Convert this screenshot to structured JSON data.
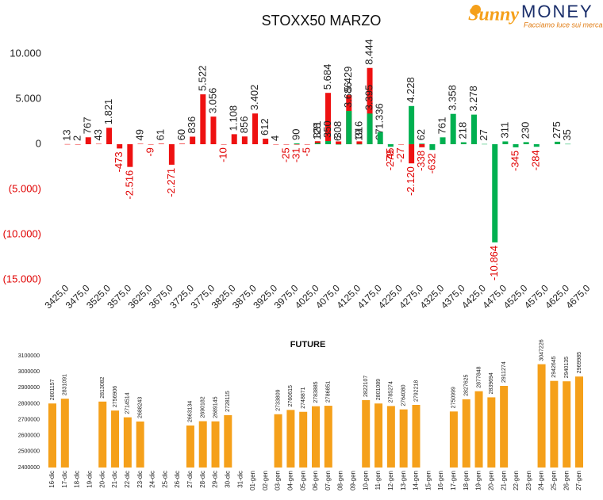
{
  "header": {
    "brand": "Sunny",
    "brand2": "MONEY",
    "tagline": "Facciamo luce sui mercati"
  },
  "chart_data": [
    {
      "type": "bar",
      "title": "STOXX50 MARZO",
      "categories": [
        "3425,0",
        null,
        "3475,0",
        null,
        "3525,0",
        null,
        "3575,0",
        null,
        "3625,0",
        null,
        "3675,0",
        null,
        "3725,0",
        null,
        "3775,0",
        null,
        "3825,0",
        null,
        "3875,0",
        null,
        "3925,0",
        null,
        "3975,0",
        null,
        "4025,0",
        null,
        "4075,0",
        null,
        "4125,0",
        null,
        "4175,0",
        null,
        "4225,0",
        null,
        "4275,0",
        null,
        "4325,0",
        null,
        "4375,0",
        null,
        "4425,0",
        null,
        "4475,0",
        null,
        "4525,0",
        null,
        "4575,0",
        null,
        "4625,0",
        null,
        "4675,0"
      ],
      "series": [
        {
          "color": "#ee1111",
          "values": [
            13,
            2,
            767,
            43,
            1821,
            -473,
            -2516,
            49,
            -9,
            61,
            -2271,
            60,
            836,
            5522,
            3056,
            -10,
            1108,
            856,
            3402,
            612,
            4,
            -25,
            -31,
            -5,
            331,
            5684,
            308,
            5429,
            316,
            8444,
            97,
            -45,
            -27,
            -2120,
            -338,
            null,
            null,
            null,
            null,
            null,
            null,
            null,
            null,
            null,
            null,
            null,
            null,
            null,
            null,
            null,
            null
          ],
          "value_labels": [
            "13",
            "2",
            "767",
            "43",
            "1.821",
            "-473",
            "-2.516",
            "49",
            "-9",
            "61",
            "-2.271",
            "60",
            "836",
            "5.522",
            "3.056",
            "-10",
            "1.108",
            "856",
            "3.402",
            "612",
            "4",
            "-25",
            "-31",
            "-5",
            "331",
            "5.684",
            "308",
            "5.429",
            "316",
            "8.444",
            "97",
            "-45",
            "-27",
            "-2.120",
            "-338",
            null,
            null,
            null,
            null,
            null,
            null,
            null,
            null,
            null,
            null,
            null,
            null,
            null,
            null,
            null,
            null
          ]
        },
        {
          "color": "#00b050",
          "values": [
            null,
            null,
            null,
            null,
            null,
            null,
            null,
            null,
            null,
            null,
            null,
            null,
            null,
            null,
            null,
            null,
            null,
            null,
            null,
            null,
            null,
            null,
            90,
            null,
            128,
            350,
            6,
            3686,
            19,
            3395,
            1336,
            -279,
            null,
            4228,
            62,
            -632,
            761,
            3358,
            218,
            3278,
            27,
            -10864,
            311,
            -345,
            230,
            -284,
            null,
            275,
            35,
            null,
            null
          ],
          "value_labels": [
            null,
            null,
            null,
            null,
            null,
            null,
            null,
            null,
            null,
            null,
            null,
            null,
            null,
            null,
            null,
            null,
            null,
            null,
            null,
            null,
            null,
            null,
            "90",
            null,
            "128",
            "350",
            "6",
            "3.686",
            "19",
            "3.395",
            "1.336",
            "-279",
            null,
            "4.228",
            "62",
            "-632",
            "761",
            "3.358",
            "218",
            "3.278",
            "27",
            "-10.864",
            "311",
            "-345",
            "230",
            "-284",
            null,
            "275",
            "35",
            null,
            null
          ]
        }
      ],
      "ylim": [
        -15000,
        10000
      ],
      "yticks": [
        {
          "value": 10000,
          "label": "10.000"
        },
        {
          "value": 5000,
          "label": "5.000"
        },
        0,
        {
          "value": -5000,
          "label": "(5.000)"
        },
        {
          "value": -10000,
          "label": "(10.000)"
        },
        {
          "value": -15000,
          "label": "(15.000)"
        }
      ],
      "negative_label_color": "#e00000",
      "grid": false
    },
    {
      "type": "bar",
      "title": "FUTURE",
      "categories": [
        "16-dic",
        "17-dic",
        "18-dic",
        "19-dic",
        "20-dic",
        "21-dic",
        "22-dic",
        "23-dic",
        "24-dic",
        "25-dic",
        "26-dic",
        "27-dic",
        "28-dic",
        "29-dic",
        "30-dic",
        "31-dic",
        "01-gen",
        "02-gen",
        "03-gen",
        "04-gen",
        "05-gen",
        "06-gen",
        "07-gen",
        "08-gen",
        "09-gen",
        "10-gen",
        "11-gen",
        "12-gen",
        "13-gen",
        "14-gen",
        "15-gen",
        "16-gen",
        "17-gen",
        "18-gen",
        "19-gen",
        "20-gen",
        "21-gen",
        "22-gen",
        "23-gen",
        "24-gen",
        "25-gen",
        "26-gen",
        "27-gen"
      ],
      "series": [
        {
          "color": "#f5a01a",
          "values": [
            2801157,
            2831091,
            null,
            null,
            2813082,
            2756906,
            2714514,
            2688243,
            null,
            null,
            null,
            2663134,
            2690182,
            2689145,
            2728115,
            null,
            null,
            null,
            2733809,
            2760615,
            2748871,
            2783885,
            2786851,
            null,
            null,
            2822107,
            2801089,
            2785274,
            2764080,
            2792218,
            null,
            null,
            2750999,
            2827625,
            2877848,
            2839694,
            2911274,
            null,
            null,
            3047226,
            2942645,
            2940135,
            2969985
          ]
        }
      ],
      "ylim": [
        2400000,
        3100000
      ],
      "yticks": [
        2400000,
        2500000,
        2600000,
        2700000,
        2800000,
        2900000,
        3000000,
        3100000
      ],
      "grid": false
    }
  ]
}
